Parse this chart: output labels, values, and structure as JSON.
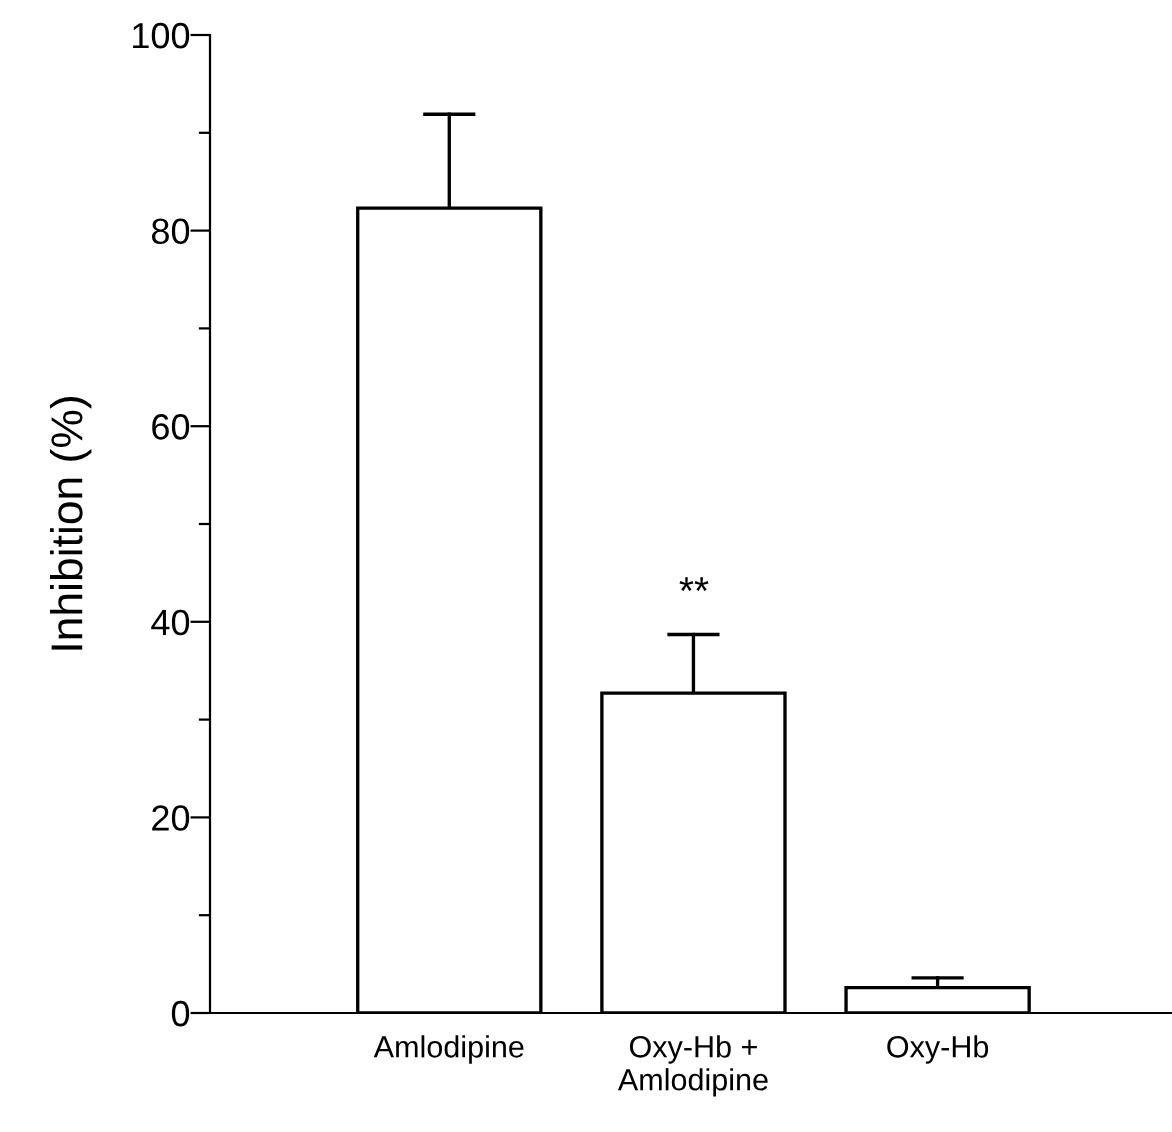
{
  "chart_data": {
    "type": "bar",
    "ylabel": "Inhibition (%)",
    "categories": [
      "Amlodipine",
      "Oxy-Hb +\nAmlodipine",
      "Oxy-Hb"
    ],
    "values": [
      82.3,
      32.7,
      2.6
    ],
    "errors": [
      [
        82.3,
        91.9
      ],
      [
        32.7,
        38.7
      ],
      [
        2.6,
        3.6
      ]
    ],
    "color": "#ffffff",
    "ylim": [
      0,
      100
    ],
    "yticks": [
      0,
      {
        "value": 10,
        "label": null
      },
      20,
      {
        "value": 30,
        "label": null
      },
      40,
      {
        "value": 50,
        "label": null
      },
      60,
      {
        "value": 70,
        "label": null
      },
      80,
      {
        "value": 90,
        "label": null
      },
      100
    ],
    "annotations": [
      "**"
    ],
    "grid": false,
    "legend": false
  }
}
